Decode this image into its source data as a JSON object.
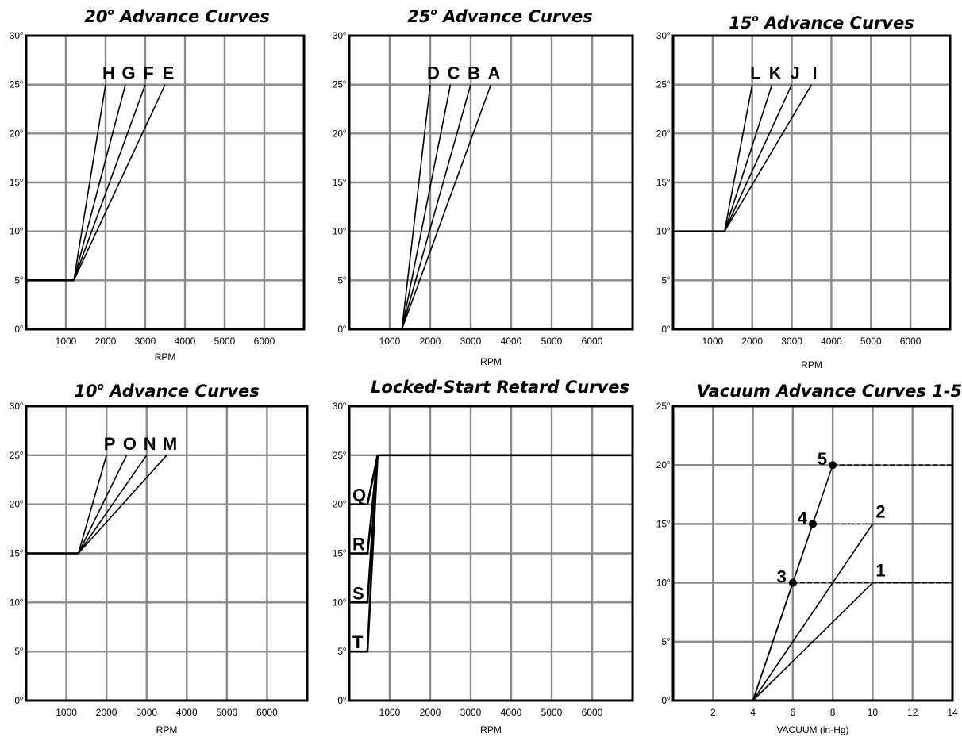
{
  "chart_data": [
    {
      "id": "c20",
      "type": "line",
      "title": "20",
      "title_rest": " Advance Curves",
      "xlabel": "RPM",
      "xlim": [
        0,
        7000
      ],
      "ylim": [
        0,
        30
      ],
      "x_ticks": [
        1000,
        2000,
        3000,
        4000,
        5000,
        6000
      ],
      "y_ticks": [
        0,
        5,
        10,
        15,
        20,
        25,
        30
      ],
      "base": {
        "x": [
          0,
          1200
        ],
        "y": [
          5,
          5
        ]
      },
      "series": [
        {
          "name": "H",
          "x": [
            1200,
            2000
          ],
          "y": [
            5,
            25
          ]
        },
        {
          "name": "G",
          "x": [
            1200,
            2500
          ],
          "y": [
            5,
            25
          ]
        },
        {
          "name": "F",
          "x": [
            1200,
            3000
          ],
          "y": [
            5,
            25
          ]
        },
        {
          "name": "E",
          "x": [
            1200,
            3500
          ],
          "y": [
            5,
            25
          ]
        }
      ]
    },
    {
      "id": "c25",
      "type": "line",
      "title": "25",
      "title_rest": " Advance Curves",
      "xlabel": "RPM",
      "xlim": [
        0,
        7000
      ],
      "ylim": [
        0,
        30
      ],
      "x_ticks": [
        1000,
        2000,
        3000,
        4000,
        5000,
        6000
      ],
      "y_ticks": [
        0,
        5,
        10,
        15,
        20,
        25,
        30
      ],
      "series": [
        {
          "name": "D",
          "x": [
            1300,
            2000
          ],
          "y": [
            0,
            25
          ]
        },
        {
          "name": "C",
          "x": [
            1300,
            2500
          ],
          "y": [
            0,
            25
          ]
        },
        {
          "name": "B",
          "x": [
            1300,
            3000
          ],
          "y": [
            0,
            25
          ]
        },
        {
          "name": "A",
          "x": [
            1300,
            3500
          ],
          "y": [
            0,
            25
          ]
        }
      ]
    },
    {
      "id": "c15",
      "type": "line",
      "title": "15",
      "title_rest": " Advance Curves",
      "xlabel": "RPM",
      "xlim": [
        0,
        7000
      ],
      "ylim": [
        0,
        30
      ],
      "x_ticks": [
        1000,
        2000,
        3000,
        4000,
        5000,
        6000
      ],
      "y_ticks": [
        0,
        5,
        10,
        15,
        20,
        25,
        30
      ],
      "base": {
        "x": [
          0,
          1300
        ],
        "y": [
          10,
          10
        ]
      },
      "series": [
        {
          "name": "L",
          "x": [
            1300,
            2000
          ],
          "y": [
            10,
            25
          ]
        },
        {
          "name": "K",
          "x": [
            1300,
            2500
          ],
          "y": [
            10,
            25
          ]
        },
        {
          "name": "J",
          "x": [
            1300,
            3000
          ],
          "y": [
            10,
            25
          ]
        },
        {
          "name": "I",
          "x": [
            1300,
            3500
          ],
          "y": [
            10,
            25
          ]
        }
      ]
    },
    {
      "id": "c10",
      "type": "line",
      "title": "10",
      "title_rest": " Advance Curves",
      "xlabel": "RPM",
      "xlim": [
        0,
        7000
      ],
      "ylim": [
        0,
        30
      ],
      "x_ticks": [
        1000,
        2000,
        3000,
        4000,
        5000,
        6000
      ],
      "y_ticks": [
        0,
        5,
        10,
        15,
        20,
        25,
        30
      ],
      "base": {
        "x": [
          0,
          1300
        ],
        "y": [
          15,
          15
        ]
      },
      "series": [
        {
          "name": "P",
          "x": [
            1300,
            2000
          ],
          "y": [
            15,
            25
          ]
        },
        {
          "name": "O",
          "x": [
            1300,
            2500
          ],
          "y": [
            15,
            25
          ]
        },
        {
          "name": "N",
          "x": [
            1300,
            3000
          ],
          "y": [
            15,
            25
          ]
        },
        {
          "name": "M",
          "x": [
            1300,
            3500
          ],
          "y": [
            15,
            25
          ]
        }
      ]
    },
    {
      "id": "clocked",
      "type": "line",
      "title": "Locked-Start Retard Curves",
      "title_rest": "",
      "xlabel": "RPM",
      "xlim": [
        0,
        7000
      ],
      "ylim": [
        0,
        30
      ],
      "x_ticks": [
        1000,
        2000,
        3000,
        4000,
        5000,
        6000
      ],
      "y_ticks": [
        0,
        5,
        10,
        15,
        20,
        25,
        30
      ],
      "top": {
        "x": [
          700,
          7000
        ],
        "y": [
          25,
          25
        ]
      },
      "series": [
        {
          "name": "Q",
          "x": [
            0,
            450,
            700
          ],
          "y": [
            20,
            20,
            25
          ]
        },
        {
          "name": "R",
          "x": [
            0,
            450,
            700
          ],
          "y": [
            15,
            15,
            25
          ]
        },
        {
          "name": "S",
          "x": [
            0,
            450,
            700
          ],
          "y": [
            10,
            10,
            25
          ]
        },
        {
          "name": "T",
          "x": [
            0,
            450,
            700
          ],
          "y": [
            5,
            5,
            25
          ]
        }
      ]
    },
    {
      "id": "cvac",
      "type": "line",
      "title": "Vacuum Advance Curves 1-5",
      "title_rest": "",
      "xlabel": "VACUUM (in-Hg)",
      "xlim": [
        0,
        14
      ],
      "ylim": [
        0,
        25
      ],
      "x_ticks": [
        2,
        4,
        6,
        8,
        10,
        12,
        14
      ],
      "y_ticks": [
        0,
        5,
        10,
        15,
        20,
        25
      ],
      "series": [
        {
          "name": "1",
          "x": [
            4,
            10,
            14
          ],
          "y": [
            0,
            10,
            10
          ]
        },
        {
          "name": "2",
          "x": [
            4,
            10,
            14
          ],
          "y": [
            0,
            15,
            15
          ]
        },
        {
          "name": "3",
          "x": [
            4,
            6,
            14
          ],
          "y": [
            0,
            10,
            10
          ]
        },
        {
          "name": "4",
          "x": [
            4,
            6,
            7,
            14
          ],
          "y": [
            0,
            10,
            15,
            15
          ]
        },
        {
          "name": "5",
          "x": [
            4,
            6,
            7,
            8,
            14
          ],
          "y": [
            0,
            10,
            15,
            20,
            20
          ]
        }
      ]
    }
  ]
}
